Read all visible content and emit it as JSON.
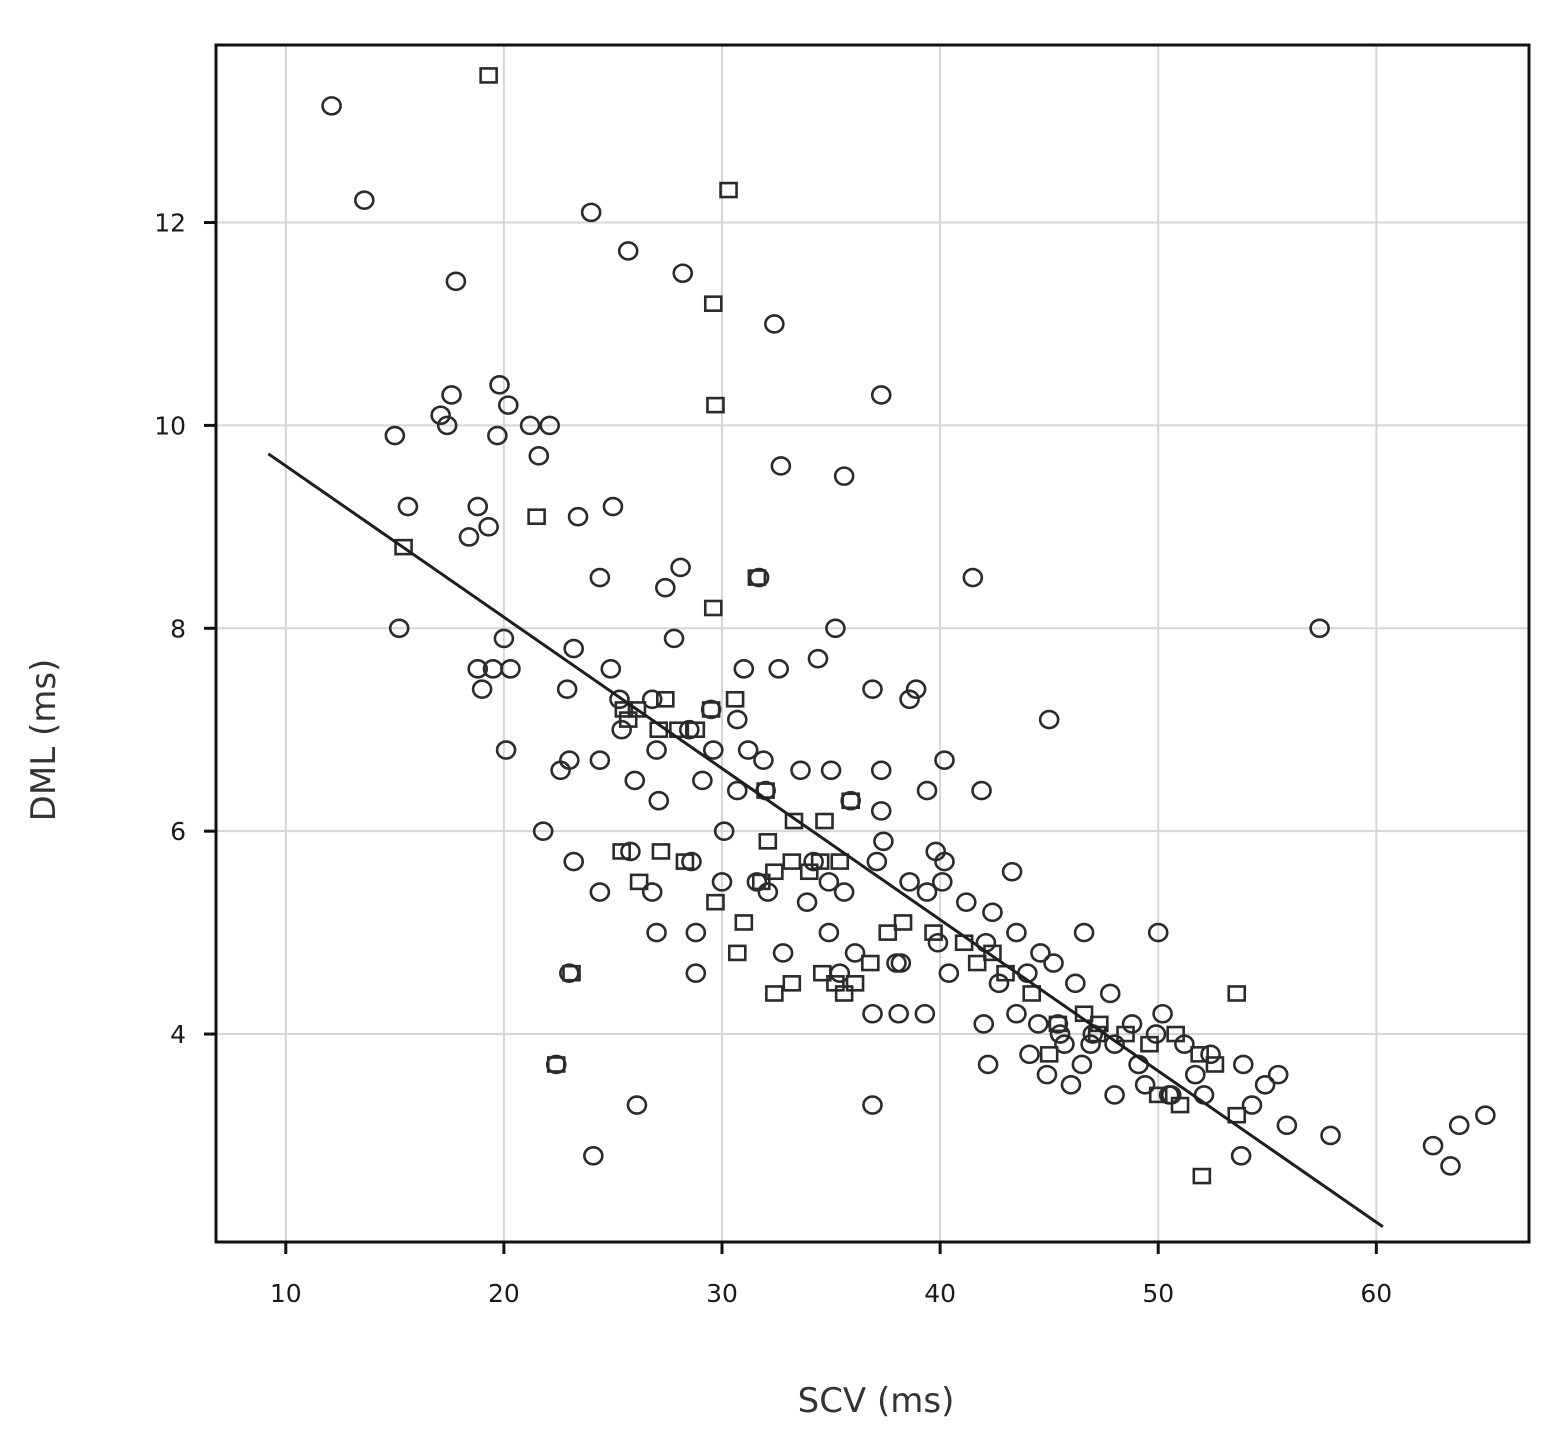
{
  "chart_data": {
    "type": "scatter",
    "title": "",
    "xlabel": "SCV (ms)",
    "ylabel": "DML (ms)",
    "xlim": [
      6.8,
      67
    ],
    "ylim": [
      1.95,
      13.75
    ],
    "xticks": [
      10,
      20,
      30,
      40,
      50,
      60
    ],
    "yticks": [
      4,
      6,
      8,
      10,
      12
    ],
    "grid": true,
    "legend": "none",
    "colors": {
      "points": "#2b2b2b",
      "line": "#1e1e1e",
      "grid": "#d6d6d6",
      "frame": "#111111"
    },
    "series": [
      {
        "marker": "circle",
        "x": [
          12.1,
          13.6,
          17.8,
          24.0,
          25.7,
          28.2,
          32.4,
          37.3,
          17.6,
          19.8,
          20.2,
          17.1,
          17.4,
          15.0,
          19.7,
          21.2,
          22.1,
          21.6,
          32.7,
          35.6,
          15.6,
          18.8,
          19.3,
          18.4,
          23.4,
          25.0,
          24.4,
          27.4,
          28.1,
          31.7,
          41.5,
          15.2,
          20.0,
          20.3,
          27.8,
          35.2,
          29.5,
          24.9,
          23.2,
          25.3,
          19.0,
          18.8,
          19.5,
          31.0,
          32.6,
          34.4,
          22.9,
          26.8,
          25.4,
          28.5,
          30.7,
          31.9,
          29.6,
          36.9,
          38.6,
          38.9,
          45.0,
          20.1,
          23.0,
          24.4,
          27.0,
          31.2,
          40.2,
          26.0,
          22.6,
          29.1,
          30.7,
          32.0,
          33.6,
          35.0,
          37.3,
          39.4,
          41.9,
          27.1,
          21.8,
          30.1,
          35.9,
          37.3,
          37.4,
          39.8,
          40.2,
          23.2,
          25.8,
          28.6,
          34.2,
          34.9,
          37.1,
          40.1,
          43.3,
          24.4,
          26.8,
          30.0,
          31.6,
          32.1,
          33.9,
          35.6,
          38.6,
          39.4,
          41.2,
          42.4,
          43.5,
          27.0,
          28.8,
          32.8,
          34.9,
          36.1,
          38.0,
          39.9,
          42.1,
          44.6,
          46.6,
          50.0,
          23.0,
          28.8,
          35.4,
          38.2,
          40.4,
          42.7,
          44.0,
          45.2,
          46.2,
          47.8,
          50.2,
          36.9,
          38.1,
          39.3,
          42.0,
          43.5,
          44.5,
          45.5,
          47.0,
          48.8,
          49.9,
          51.2,
          52.4,
          42.2,
          44.1,
          45.7,
          46.9,
          48.0,
          49.1,
          50.6,
          51.7,
          53.9,
          55.5,
          44.9,
          46.0,
          49.4,
          50.5,
          52.1,
          54.3,
          54.9,
          26.1,
          36.9,
          22.4,
          24.1,
          53.8,
          57.4,
          55.9,
          57.9,
          62.6,
          63.4,
          63.8,
          65.0,
          48.0,
          46.5,
          45.4
        ]
      },
      {
        "marker": "square",
        "x": [
          19.3,
          30.3,
          29.6,
          29.7,
          21.5,
          15.4,
          31.6,
          29.6,
          25.5,
          26.1,
          27.4,
          28.0,
          25.7,
          27.1,
          28.8,
          29.5,
          30.6,
          32.0,
          33.3,
          34.7,
          25.4,
          26.2,
          27.2,
          28.3,
          29.7,
          31.0,
          32.1,
          33.2,
          34.5,
          35.9,
          37.6,
          32.4,
          34.0,
          35.4,
          36.8,
          38.3,
          39.7,
          41.1,
          42.4,
          32.4,
          35.2,
          35.6,
          30.7,
          31.8,
          33.2,
          34.6,
          36.1,
          41.7,
          43.0,
          44.2,
          45.4,
          46.6,
          47.2,
          48.5,
          49.6,
          50.8,
          51.9,
          52.6,
          53.6,
          53.6,
          52.0,
          51.0,
          50.0,
          23.1,
          22.4,
          45.0,
          47.3
        ]
      }
    ],
    "fit_line": {
      "x": [
        9.2,
        60.3
      ],
      "y": [
        9.72,
        2.1
      ]
    }
  }
}
